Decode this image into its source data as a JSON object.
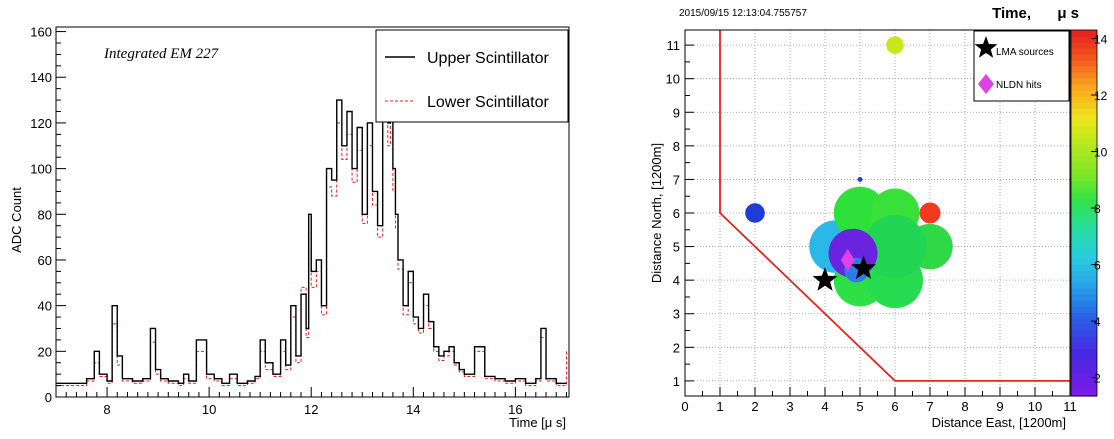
{
  "chart_data": [
    {
      "type": "line",
      "annotation": "Integrated  EM 227",
      "xlabel": "Time [μ s]",
      "ylabel": "ADC Count",
      "xlim": [
        7.0,
        17.05
      ],
      "ylim": [
        0,
        162
      ],
      "xticks": [
        8,
        10,
        12,
        14,
        16
      ],
      "yticks": [
        0,
        20,
        40,
        60,
        80,
        100,
        120,
        140,
        160
      ],
      "legend": "top-right",
      "series": [
        {
          "name": "Upper Scintillator",
          "color": "#000000",
          "style": "solid",
          "x": [
            7.0,
            7.3,
            7.6,
            7.75,
            7.85,
            8.0,
            8.1,
            8.2,
            8.3,
            8.5,
            8.7,
            8.85,
            8.95,
            9.05,
            9.2,
            9.4,
            9.5,
            9.6,
            9.75,
            9.95,
            10.1,
            10.25,
            10.4,
            10.55,
            10.75,
            10.9,
            11.0,
            11.1,
            11.25,
            11.4,
            11.5,
            11.6,
            11.7,
            11.8,
            11.9,
            11.95,
            12.0,
            12.1,
            12.2,
            12.3,
            12.4,
            12.5,
            12.6,
            12.7,
            12.8,
            12.9,
            13.0,
            13.1,
            13.2,
            13.3,
            13.4,
            13.5,
            13.55,
            13.6,
            13.65,
            13.7,
            13.8,
            13.9,
            14.0,
            14.1,
            14.2,
            14.3,
            14.4,
            14.5,
            14.6,
            14.7,
            14.8,
            14.9,
            15.0,
            15.2,
            15.4,
            15.6,
            15.8,
            16.0,
            16.2,
            16.4,
            16.5,
            16.6,
            16.8,
            17.0
          ],
          "y": [
            6,
            6,
            8,
            20,
            10,
            7,
            40,
            18,
            8,
            7,
            8,
            30,
            12,
            8,
            7,
            6,
            10,
            7,
            25,
            10,
            8,
            6,
            10,
            6,
            7,
            9,
            25,
            15,
            10,
            25,
            14,
            40,
            18,
            45,
            30,
            80,
            55,
            60,
            40,
            100,
            95,
            130,
            110,
            125,
            100,
            118,
            80,
            120,
            90,
            75,
            135,
            120,
            160,
            100,
            80,
            60,
            40,
            55,
            35,
            30,
            45,
            33,
            22,
            18,
            20,
            22,
            15,
            12,
            10,
            22,
            9,
            8,
            7,
            8,
            6,
            8,
            30,
            8,
            6,
            6
          ]
        },
        {
          "name": "Lower Scintillator",
          "color": "#e8231d",
          "style": "dashed",
          "x": [
            7.0,
            7.3,
            7.6,
            7.75,
            7.85,
            8.0,
            8.1,
            8.2,
            8.3,
            8.5,
            8.7,
            8.85,
            8.95,
            9.05,
            9.2,
            9.4,
            9.5,
            9.6,
            9.75,
            9.95,
            10.1,
            10.25,
            10.4,
            10.55,
            10.75,
            10.9,
            11.0,
            11.1,
            11.25,
            11.4,
            11.5,
            11.6,
            11.7,
            11.8,
            11.9,
            11.95,
            12.0,
            12.1,
            12.2,
            12.3,
            12.4,
            12.5,
            12.6,
            12.7,
            12.8,
            12.9,
            13.0,
            13.1,
            13.2,
            13.3,
            13.4,
            13.5,
            13.55,
            13.6,
            13.65,
            13.7,
            13.8,
            13.9,
            14.0,
            14.1,
            14.2,
            14.3,
            14.4,
            14.5,
            14.6,
            14.7,
            14.8,
            14.9,
            15.0,
            15.2,
            15.4,
            15.6,
            15.8,
            16.0,
            16.2,
            16.4,
            16.5,
            16.6,
            16.8,
            17.0
          ],
          "y": [
            5,
            5,
            7,
            15,
            9,
            6,
            32,
            14,
            7,
            6,
            7,
            24,
            10,
            7,
            6,
            5,
            8,
            6,
            20,
            8,
            7,
            5,
            8,
            5,
            6,
            8,
            20,
            12,
            9,
            20,
            12,
            35,
            15,
            48,
            26,
            72,
            48,
            55,
            36,
            92,
            88,
            120,
            104,
            115,
            94,
            108,
            76,
            110,
            84,
            70,
            122,
            110,
            140,
            90,
            74,
            56,
            36,
            50,
            32,
            28,
            40,
            30,
            20,
            16,
            18,
            20,
            14,
            11,
            9,
            20,
            8,
            7,
            6,
            7,
            5,
            7,
            26,
            7,
            5,
            20
          ]
        }
      ]
    },
    {
      "type": "scatter",
      "title": "2015/09/15 12:13:04.755757",
      "xlabel": "Distance East,  [1200m]",
      "ylabel": "Distance North, [1200m]",
      "xlim": [
        0,
        11
      ],
      "ylim": [
        0.55,
        11.45
      ],
      "xticks": [
        0,
        1,
        2,
        3,
        4,
        5,
        6,
        7,
        8,
        9,
        10,
        11
      ],
      "yticks": [
        1,
        2,
        3,
        4,
        5,
        6,
        7,
        8,
        9,
        10,
        11
      ],
      "grid": true,
      "legend": "top-right",
      "legend_entries": [
        "LMA sources",
        "NLDN hits"
      ],
      "colorbar": {
        "title": "Time,",
        "unit": "μ s",
        "range": [
          1.35,
          14.3
        ],
        "ticks": [
          2,
          4,
          6,
          8,
          10,
          12,
          14
        ]
      },
      "boundary": {
        "color": "#e8231d",
        "x": [
          1,
          1,
          6,
          11
        ],
        "y": [
          11.45,
          6,
          1,
          1
        ]
      },
      "points": [
        {
          "x": 6.0,
          "y": 11.0,
          "t": 9.8,
          "r": 0.25,
          "color": "#c8e61c"
        },
        {
          "x": 2.0,
          "y": 6.0,
          "t": 3.5,
          "r": 0.28,
          "color": "#1e3cd6"
        },
        {
          "x": 7.0,
          "y": 6.0,
          "t": 12.9,
          "r": 0.3,
          "color": "#f13a1f"
        },
        {
          "x": 5.0,
          "y": 7.0,
          "t": 3.0,
          "r": 0.07,
          "color": "#1e3cd6"
        },
        {
          "x": 4.3,
          "y": 5.0,
          "t": 5.3,
          "r": 0.75,
          "color": "#29b8e8"
        },
        {
          "x": 7.0,
          "y": 5.0,
          "t": 7.2,
          "r": 0.65,
          "color": "#30d848"
        },
        {
          "x": 5.0,
          "y": 6.0,
          "t": 7.6,
          "r": 0.75,
          "color": "#2ee03a"
        },
        {
          "x": 6.0,
          "y": 6.0,
          "t": 7.8,
          "r": 0.7,
          "color": "#3ae03a"
        },
        {
          "x": 5.0,
          "y": 4.0,
          "t": 7.3,
          "r": 0.75,
          "color": "#2edf45"
        },
        {
          "x": 6.0,
          "y": 4.0,
          "t": 7.1,
          "r": 0.8,
          "color": "#26dc4e"
        },
        {
          "x": 6.0,
          "y": 5.0,
          "t": 7.0,
          "r": 0.9,
          "color": "#22d653"
        },
        {
          "x": 4.8,
          "y": 4.8,
          "t": 2.2,
          "r": 0.7,
          "color": "#6a24e0"
        },
        {
          "x": 4.9,
          "y": 4.3,
          "t": 4.6,
          "r": 0.35,
          "color": "#2a7ce8"
        }
      ],
      "lma_sources": [
        {
          "x": 4.0,
          "y": 4.0
        },
        {
          "x": 5.1,
          "y": 4.35
        }
      ],
      "nldn_hits": [
        {
          "x": 4.65,
          "y": 4.6,
          "color": "#e040e6"
        }
      ]
    }
  ]
}
